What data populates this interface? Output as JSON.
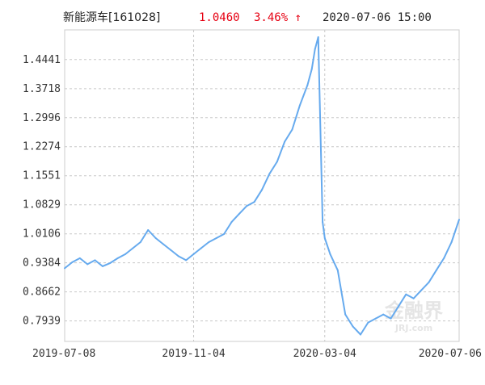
{
  "header": {
    "fund": "新能源车[161028]",
    "price": "1.0460",
    "change": "3.46% ↑",
    "time": "2020-07-06 15:00"
  },
  "colors": {
    "line": "#66aaee",
    "up": "#e60012",
    "grid": "#c8c8c8",
    "frame": "#cccccc"
  },
  "watermark": {
    "main": "金融界",
    "sub": "JRJ.com"
  },
  "chart_data": {
    "type": "line",
    "title": "",
    "xlabel": "",
    "ylabel": "",
    "ylim": [
      0.743,
      1.518
    ],
    "y_ticks": [
      "1.4441",
      "1.3718",
      "1.2996",
      "1.2274",
      "1.1551",
      "1.0829",
      "1.0106",
      "0.9384",
      "0.8662",
      "0.7939"
    ],
    "x_ticks": [
      "2019-07-08",
      "2019-11-04",
      "2020-03-04",
      "2020-07-06"
    ],
    "x": [
      "2019-07-08",
      "2019-07-15",
      "2019-07-22",
      "2019-07-29",
      "2019-08-05",
      "2019-08-12",
      "2019-08-19",
      "2019-08-26",
      "2019-09-02",
      "2019-09-09",
      "2019-09-16",
      "2019-09-23",
      "2019-09-30",
      "2019-10-07",
      "2019-10-14",
      "2019-10-21",
      "2019-10-28",
      "2019-11-04",
      "2019-11-11",
      "2019-11-18",
      "2019-11-25",
      "2019-12-02",
      "2019-12-09",
      "2019-12-16",
      "2019-12-23",
      "2019-12-30",
      "2020-01-06",
      "2020-01-13",
      "2020-01-20",
      "2020-01-27",
      "2020-02-03",
      "2020-02-10",
      "2020-02-17",
      "2020-02-21",
      "2020-02-24",
      "2020-02-27",
      "2020-03-02",
      "2020-03-04",
      "2020-03-09",
      "2020-03-16",
      "2020-03-23",
      "2020-03-30",
      "2020-04-06",
      "2020-04-13",
      "2020-04-20",
      "2020-04-27",
      "2020-05-04",
      "2020-05-11",
      "2020-05-18",
      "2020-05-25",
      "2020-06-01",
      "2020-06-08",
      "2020-06-15",
      "2020-06-22",
      "2020-06-29",
      "2020-07-06"
    ],
    "values": [
      0.925,
      0.94,
      0.95,
      0.935,
      0.945,
      0.93,
      0.938,
      0.95,
      0.96,
      0.975,
      0.99,
      1.02,
      1.0,
      0.985,
      0.97,
      0.955,
      0.945,
      0.96,
      0.975,
      0.99,
      1.0,
      1.01,
      1.04,
      1.06,
      1.08,
      1.09,
      1.12,
      1.16,
      1.19,
      1.24,
      1.27,
      1.33,
      1.38,
      1.42,
      1.47,
      1.5,
      1.04,
      1.0,
      0.96,
      0.92,
      0.81,
      0.78,
      0.76,
      0.79,
      0.8,
      0.81,
      0.8,
      0.83,
      0.86,
      0.85,
      0.87,
      0.89,
      0.92,
      0.95,
      0.99,
      1.046
    ]
  }
}
